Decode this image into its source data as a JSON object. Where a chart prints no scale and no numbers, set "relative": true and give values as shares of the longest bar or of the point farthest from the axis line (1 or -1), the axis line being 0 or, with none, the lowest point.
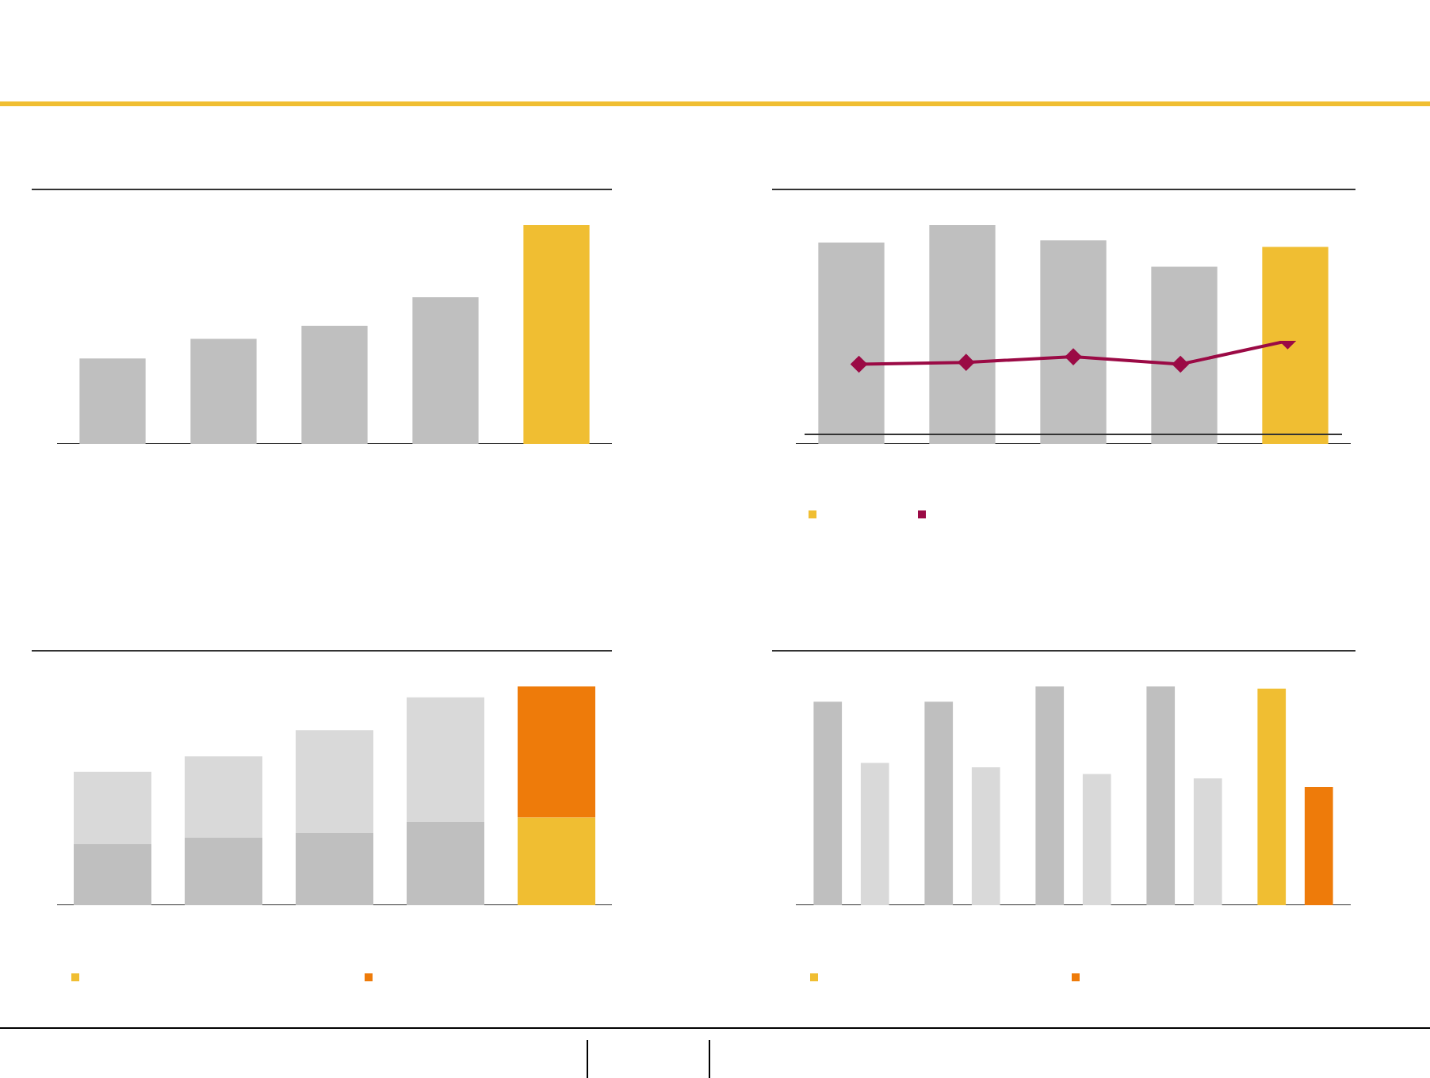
{
  "chart_data": [
    {
      "type": "bar",
      "relative": true,
      "categories": [
        null,
        null,
        null,
        null,
        null
      ],
      "series": [
        {
          "colors": [
            "#bfbfbf",
            "#bfbfbf",
            "#bfbfbf",
            "#bfbfbf",
            "#f0be32"
          ],
          "values": [
            0.39,
            0.48,
            0.54,
            0.67,
            1
          ]
        }
      ]
    },
    {
      "type": "bar",
      "relative": true,
      "categories": [
        null,
        null,
        null,
        null,
        null
      ],
      "series": [
        {
          "colors": [
            "#bfbfbf",
            "#bfbfbf",
            "#bfbfbf",
            "#bfbfbf",
            "#f0be32"
          ],
          "values": [
            0.92,
            1,
            0.93,
            0.81,
            0.9
          ]
        }
      ]
    },
    {
      "type": "line",
      "relative": true,
      "marker": "diamond",
      "categories": [
        null,
        null,
        null,
        null,
        null
      ],
      "series": [
        {
          "color": "#9b0a45",
          "values": [
            0.75,
            0.77,
            0.83,
            0.75,
            1
          ]
        }
      ]
    },
    {
      "type": "bar",
      "relative": true,
      "stacked": true,
      "categories": [
        null,
        null,
        null,
        null,
        null
      ],
      "series": [
        {
          "colors": [
            "#bfbfbf",
            "#bfbfbf",
            "#bfbfbf",
            "#bfbfbf",
            "#f0be32"
          ],
          "values": [
            0.28,
            0.31,
            0.33,
            0.38,
            0.4
          ]
        },
        {
          "colors": [
            "#d9d9d9",
            "#d9d9d9",
            "#d9d9d9",
            "#d9d9d9",
            "#ee7b0a"
          ],
          "values": [
            0.33,
            0.37,
            0.47,
            0.57,
            0.6
          ]
        }
      ]
    },
    {
      "type": "bar",
      "relative": true,
      "categories": [
        null,
        null,
        null,
        null,
        null
      ],
      "series": [
        {
          "colors": [
            "#bfbfbf",
            "#bfbfbf",
            "#bfbfbf",
            "#bfbfbf",
            "#f0be32"
          ],
          "values": [
            0.93,
            0.93,
            1,
            1,
            0.99
          ]
        },
        {
          "colors": [
            "#d9d9d9",
            "#d9d9d9",
            "#d9d9d9",
            "#d9d9d9",
            "#ee7b0a"
          ],
          "values": [
            0.65,
            0.63,
            0.6,
            0.58,
            0.54
          ]
        }
      ]
    }
  ]
}
